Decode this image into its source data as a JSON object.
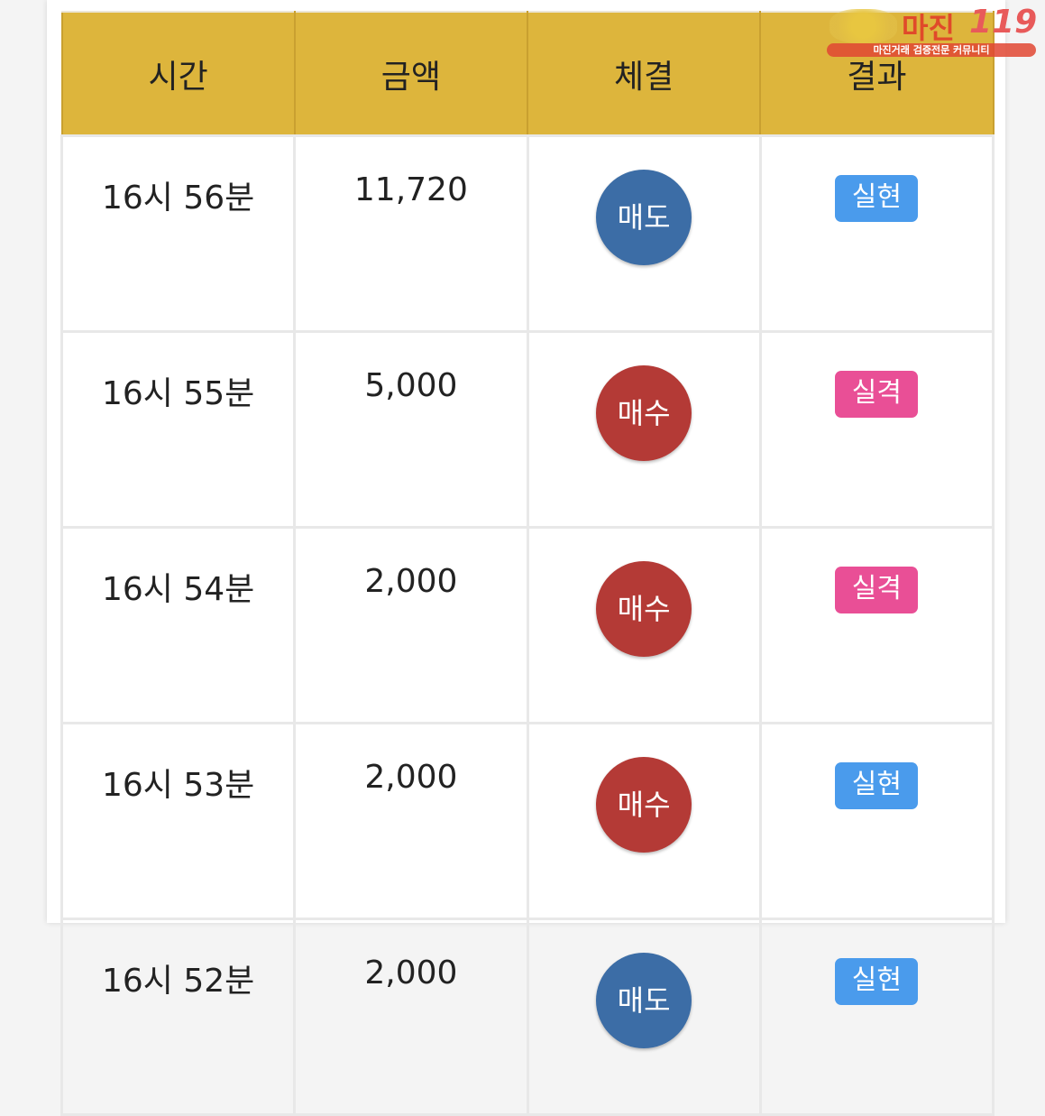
{
  "headers": [
    "시간",
    "금액",
    "체결",
    "결과"
  ],
  "rows": [
    {
      "time": "16시 56분",
      "amount": "11,720",
      "trade": "매도",
      "result": "실현"
    },
    {
      "time": "16시 55분",
      "amount": "5,000",
      "trade": "매수",
      "result": "실격"
    },
    {
      "time": "16시 54분",
      "amount": "2,000",
      "trade": "매수",
      "result": "실격"
    },
    {
      "time": "16시 53분",
      "amount": "2,000",
      "trade": "매수",
      "result": "실현"
    },
    {
      "time": "16시 52분",
      "amount": "2,000",
      "trade": "매도",
      "result": "실현"
    }
  ],
  "colors": {
    "sell": "#3c6da6",
    "buy": "#b43a36",
    "realized": "#4a9bec",
    "disqualified": "#e94f96",
    "header": "#ddb53c"
  },
  "watermark": {
    "title": "마진",
    "number": "119",
    "tagline": "마진거래 검증전문 커뮤니티"
  }
}
